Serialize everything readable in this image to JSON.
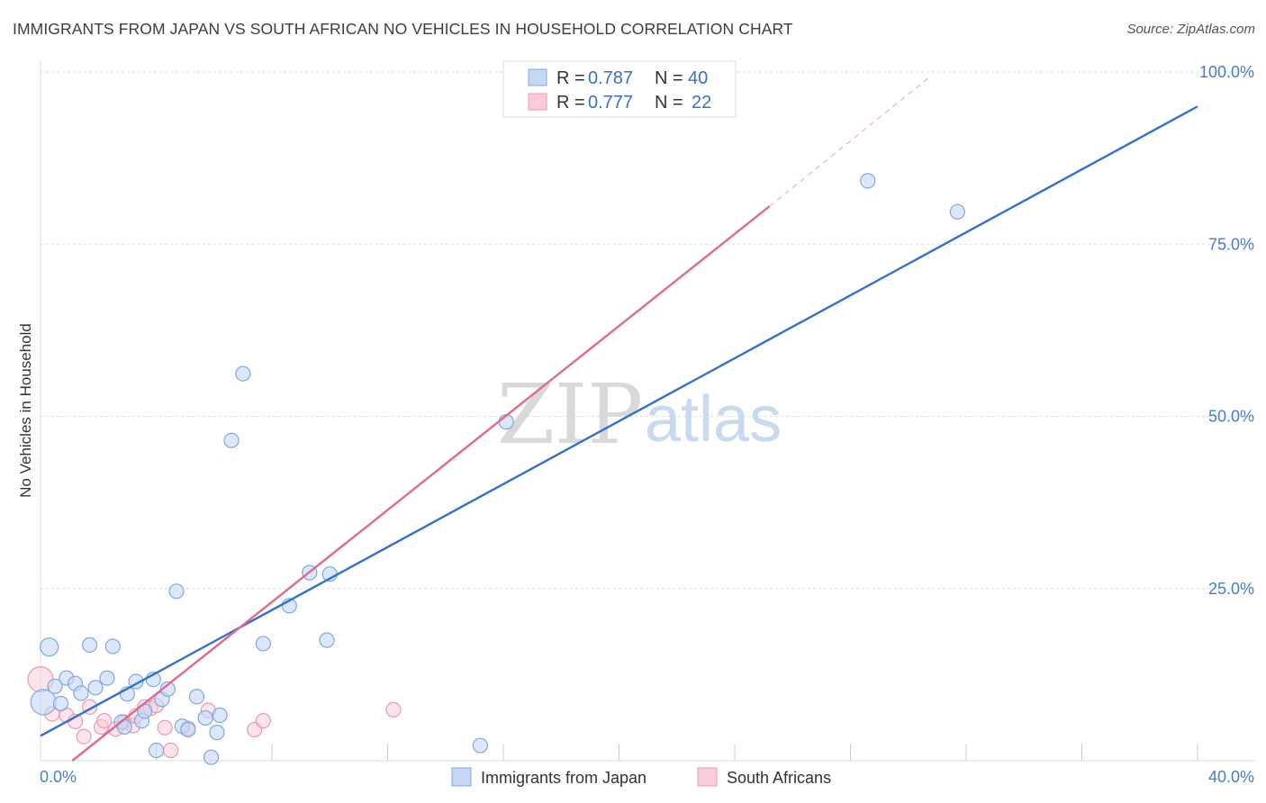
{
  "header": {
    "title": "IMMIGRANTS FROM JAPAN VS SOUTH AFRICAN NO VEHICLES IN HOUSEHOLD CORRELATION CHART",
    "source": "Source: ZipAtlas.com"
  },
  "watermark": {
    "zip": "ZIP",
    "atlas": "atlas"
  },
  "colors": {
    "blue_fill": "#c5d8f5",
    "blue_stroke": "#7fa8e0",
    "blue_line": "#2f72d0",
    "pink_fill": "#f8cdd9",
    "pink_stroke": "#e99ab3",
    "pink_line": "#e0688f",
    "grid": "#dddddd",
    "tick_text": "#4a7ccc"
  },
  "legend": {
    "rows": [
      {
        "r_label": "R = ",
        "r_value": "0.787",
        "n_label": "N = ",
        "n_value": "40"
      },
      {
        "r_label": "R = ",
        "r_value": "0.777",
        "n_label": "N = ",
        "n_value": "22"
      }
    ]
  },
  "bottom_legend": {
    "series1": "Immigrants from Japan",
    "series2": "South Africans"
  },
  "chart_data": {
    "type": "scatter",
    "title": "IMMIGRANTS FROM JAPAN VS SOUTH AFRICAN NO VEHICLES IN HOUSEHOLD CORRELATION CHART",
    "xlabel": "",
    "ylabel": "No Vehicles in Household",
    "xlim": [
      0,
      40
    ],
    "ylim": [
      0,
      100
    ],
    "x_ticks": [
      "0.0%",
      "40.0%"
    ],
    "y_ticks": [
      {
        "value": 25,
        "label": "25.0%"
      },
      {
        "value": 50,
        "label": "50.0%"
      },
      {
        "value": 75,
        "label": "75.0%"
      },
      {
        "value": 100,
        "label": "100.0%"
      }
    ],
    "series": [
      {
        "name": "Immigrants from Japan",
        "r": 0.787,
        "n": 40,
        "trend": {
          "x": [
            0,
            40
          ],
          "y": [
            3.6,
            95.0
          ]
        },
        "points": [
          [
            0.1,
            8.5,
            14
          ],
          [
            0.3,
            16.5,
            10
          ],
          [
            0.5,
            10.8,
            8
          ],
          [
            0.7,
            8.3,
            8
          ],
          [
            0.9,
            12.0,
            8
          ],
          [
            1.2,
            11.2,
            8
          ],
          [
            1.4,
            9.8,
            8
          ],
          [
            1.7,
            16.8,
            8
          ],
          [
            1.9,
            10.6,
            8
          ],
          [
            2.3,
            12.0,
            8
          ],
          [
            2.5,
            16.6,
            8
          ],
          [
            2.8,
            5.6,
            8
          ],
          [
            2.9,
            4.9,
            8
          ],
          [
            3.0,
            9.7,
            8
          ],
          [
            3.3,
            11.5,
            8
          ],
          [
            3.5,
            5.8,
            8
          ],
          [
            3.6,
            7.2,
            8
          ],
          [
            3.9,
            11.8,
            8
          ],
          [
            4.0,
            1.5,
            8
          ],
          [
            4.2,
            8.9,
            8
          ],
          [
            4.4,
            10.4,
            8
          ],
          [
            4.7,
            24.6,
            8
          ],
          [
            4.9,
            5.0,
            8
          ],
          [
            5.1,
            4.5,
            8
          ],
          [
            5.4,
            9.3,
            8
          ],
          [
            5.7,
            6.2,
            8
          ],
          [
            5.9,
            0.5,
            8
          ],
          [
            6.1,
            4.1,
            8
          ],
          [
            6.2,
            6.6,
            8
          ],
          [
            6.6,
            46.5,
            8
          ],
          [
            7.0,
            56.2,
            8
          ],
          [
            7.7,
            17.0,
            8
          ],
          [
            8.6,
            22.5,
            8
          ],
          [
            9.3,
            27.3,
            8
          ],
          [
            9.9,
            17.5,
            8
          ],
          [
            10.0,
            27.1,
            8
          ],
          [
            15.2,
            2.2,
            8
          ],
          [
            16.1,
            49.2,
            8
          ],
          [
            28.6,
            84.2,
            8
          ],
          [
            31.7,
            79.7,
            8
          ]
        ]
      },
      {
        "name": "South Africans",
        "r": 0.777,
        "n": 22,
        "trend": {
          "x": [
            1.1,
            25.2
          ],
          "y": [
            0.0,
            80.5
          ]
        },
        "trend_extension": {
          "x": [
            25.2,
            30.8
          ],
          "y": [
            80.5,
            99.5
          ]
        },
        "points": [
          [
            0.0,
            11.8,
            14
          ],
          [
            0.4,
            6.8,
            8
          ],
          [
            0.9,
            6.6,
            8
          ],
          [
            1.2,
            5.7,
            8
          ],
          [
            1.5,
            3.5,
            8
          ],
          [
            1.7,
            7.8,
            8
          ],
          [
            2.1,
            4.9,
            8
          ],
          [
            2.2,
            5.8,
            8
          ],
          [
            2.6,
            4.6,
            8
          ],
          [
            2.9,
            5.6,
            8
          ],
          [
            3.2,
            5.1,
            8
          ],
          [
            3.3,
            6.5,
            8
          ],
          [
            3.6,
            7.8,
            8
          ],
          [
            3.8,
            7.6,
            8
          ],
          [
            4.0,
            8.0,
            8
          ],
          [
            4.3,
            4.8,
            8
          ],
          [
            4.5,
            1.5,
            8
          ],
          [
            5.1,
            4.7,
            8
          ],
          [
            5.8,
            7.3,
            8
          ],
          [
            7.4,
            4.5,
            8
          ],
          [
            7.7,
            5.8,
            8
          ],
          [
            12.2,
            7.4,
            8
          ]
        ]
      }
    ]
  }
}
